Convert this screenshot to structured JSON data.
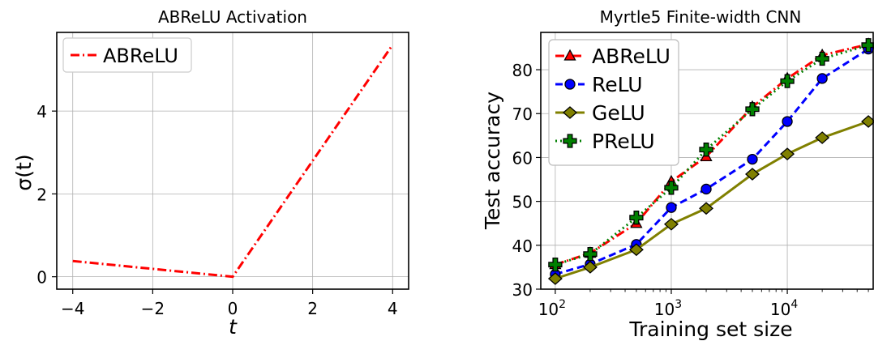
{
  "chart_data": [
    {
      "type": "line",
      "title": "ABReLU Activation",
      "xlabel": "t",
      "ylabel": "σ(t)",
      "xlim": [
        -4.4,
        4.4
      ],
      "ylim": [
        -0.3,
        5.9
      ],
      "xticks": [
        -4,
        -2,
        0,
        2,
        4
      ],
      "xtick_labels": [
        "−4",
        "−2",
        "0",
        "2",
        "4"
      ],
      "yticks": [
        0,
        2,
        4
      ],
      "ytick_labels": [
        "0",
        "2",
        "4"
      ],
      "grid": true,
      "legend_position": "top-left",
      "series": [
        {
          "name": "ABReLU",
          "color": "#ff0000",
          "style": "dash-dot",
          "x": [
            -4,
            0,
            4
          ],
          "y": [
            0.38,
            0,
            5.6
          ]
        }
      ]
    },
    {
      "type": "line",
      "title": "Myrtle5 Finite-width CNN",
      "xlabel": "Training set size",
      "ylabel": "Test accuracy",
      "xscale": "log",
      "xlim": [
        75,
        55000
      ],
      "ylim": [
        30,
        88.5
      ],
      "xticks": [
        100,
        1000,
        10000
      ],
      "xtick_labels": [
        "10",
        "10",
        "10"
      ],
      "xtick_exponents": [
        "2",
        "3",
        "4"
      ],
      "yticks": [
        30,
        40,
        50,
        60,
        70,
        80
      ],
      "ytick_labels": [
        "30",
        "40",
        "50",
        "60",
        "70",
        "80"
      ],
      "grid": true,
      "legend_position": "top-left",
      "x": [
        100,
        200,
        500,
        1000,
        2000,
        5000,
        10000,
        20000,
        50000
      ],
      "series": [
        {
          "name": "ABReLU",
          "color": "#ff0000",
          "style": "dash-dot",
          "marker": "triangle",
          "values": [
            35.6,
            38.2,
            45.0,
            54.5,
            60.2,
            71.5,
            78.0,
            83.3,
            85.8
          ]
        },
        {
          "name": "ReLU",
          "color": "#0000ff",
          "style": "dashed",
          "marker": "circle",
          "values": [
            33.4,
            35.7,
            40.2,
            48.6,
            52.8,
            59.6,
            68.2,
            78.0,
            84.7
          ]
        },
        {
          "name": "GeLU",
          "color": "#808000",
          "style": "solid",
          "marker": "diamond",
          "values": [
            32.4,
            35.0,
            39.0,
            44.8,
            48.4,
            56.2,
            60.8,
            64.5,
            68.2
          ]
        },
        {
          "name": "PReLU",
          "color": "#008000",
          "style": "dotted",
          "marker": "plus",
          "values": [
            35.6,
            38.0,
            46.3,
            53.1,
            61.8,
            71.0,
            77.4,
            82.5,
            85.6
          ]
        }
      ]
    }
  ]
}
